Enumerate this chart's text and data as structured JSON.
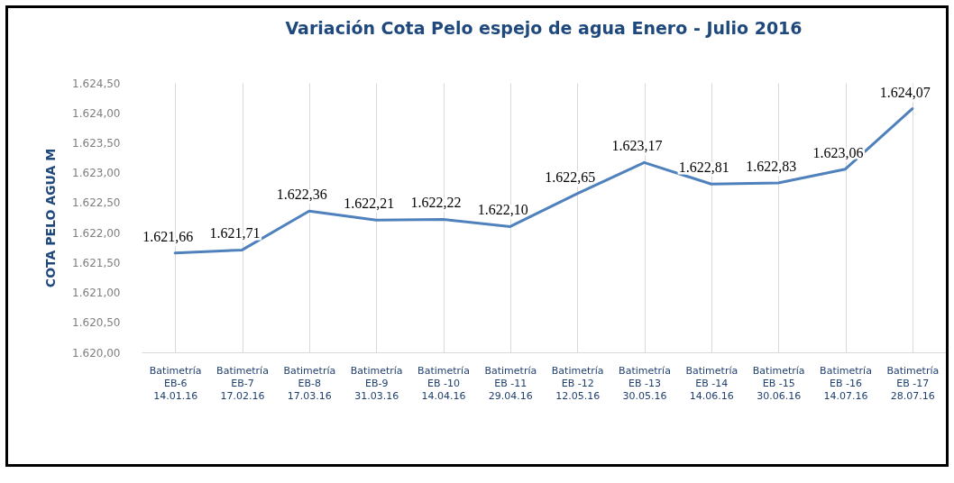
{
  "chart_data": {
    "type": "line",
    "title": "Variación Cota Pelo espejo de agua Enero - Julio 2016",
    "ylabel": "COTA PELO AGUA  M",
    "categories": [
      "Batimetría\nEB-6\n14.01.16",
      "Batimetría\nEB-7\n17.02.16",
      "Batimetría\nEB-8\n17.03.16",
      "Batimetría\nEB-9\n31.03.16",
      "Batimetría\nEB -10\n14.04.16",
      "Batimetría\nEB -11\n29.04.16",
      "Batimetría\nEB -12\n12.05.16",
      "Batimetría\nEB -13\n30.05.16",
      "Batimetría\nEB -14\n14.06.16",
      "Batimetría\nEB -15\n30.06.16",
      "Batimetría\nEB -16\n14.07.16",
      "Batimetría\nEB -17\n28.07.16"
    ],
    "series": [
      {
        "color": "#4f81bd",
        "values": [
          1621.66,
          1621.71,
          1622.36,
          1622.21,
          1622.22,
          1622.1,
          1622.65,
          1623.17,
          1622.81,
          1622.83,
          1623.06,
          1624.07
        ],
        "value_labels": [
          "1.621,66",
          "1.621,71",
          "1.622,36",
          "1.622,21",
          "1.622,22",
          "1.622,10",
          "1.622,65",
          "1.623,17",
          "1.622,81",
          "1.622,83",
          "1.623,06",
          "1.624,07"
        ]
      }
    ],
    "ylim": [
      1620,
      1624.5
    ],
    "yticks": [
      {
        "value": 1620,
        "label": "1.620,00"
      },
      {
        "value": 1620.5,
        "label": "1.620,50"
      },
      {
        "value": 1621,
        "label": "1.621,00"
      },
      {
        "value": 1621.5,
        "label": "1.621,50"
      },
      {
        "value": 1622,
        "label": "1.622,00"
      },
      {
        "value": 1622.5,
        "label": "1.622,50"
      },
      {
        "value": 1623,
        "label": "1.623,00"
      },
      {
        "value": 1623.5,
        "label": "1.623,50"
      },
      {
        "value": 1624,
        "label": "1.624,00"
      },
      {
        "value": 1624.5,
        "label": "1.624,50"
      }
    ],
    "grid": "x",
    "marker": "none",
    "line_style": "solid"
  }
}
